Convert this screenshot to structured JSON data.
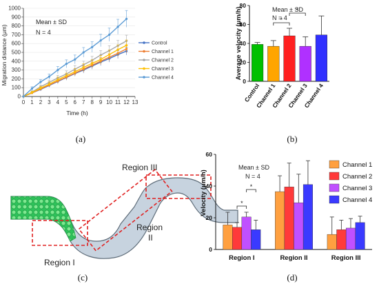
{
  "panel_labels": {
    "a": "(a)",
    "b": "(b)",
    "c": "(c)",
    "d": "(d)"
  },
  "annotations": {
    "a_mean": "Mean ± SD",
    "a_n": "N = 4",
    "b_mean": "Mean ± SD",
    "b_n": "N = 4",
    "d_mean": "Mean ± SD",
    "d_n": "N = 4",
    "star": "*"
  },
  "diagram": {
    "region1": "Region I",
    "region2": "Region",
    "region2_numeral": "II",
    "region3": "Region III"
  },
  "chart_data": [
    {
      "type": "line",
      "id": "a",
      "title": "",
      "xlabel": "Time (h)",
      "ylabel": "Migration distance (μm)",
      "xlim": [
        0,
        13
      ],
      "ylim": [
        0,
        1000
      ],
      "x_ticks": [
        0,
        1,
        2,
        3,
        4,
        5,
        6,
        7,
        8,
        9,
        10,
        11,
        12,
        13
      ],
      "y_ticks": [
        0,
        100,
        200,
        300,
        400,
        500,
        600,
        700,
        800,
        900,
        1000
      ],
      "x": [
        0,
        1,
        2,
        3,
        4,
        5,
        6,
        7,
        8,
        9,
        10,
        11,
        12
      ],
      "series": [
        {
          "name": "Control",
          "color": "#4472c4",
          "values": [
            0,
            40,
            80,
            125,
            170,
            215,
            260,
            300,
            345,
            390,
            430,
            475,
            515
          ],
          "err": [
            0,
            10,
            15,
            20,
            25,
            30,
            30,
            35,
            35,
            40,
            40,
            45,
            45
          ]
        },
        {
          "name": "Channel 1",
          "color": "#ed7d31",
          "values": [
            0,
            40,
            85,
            130,
            175,
            220,
            265,
            310,
            355,
            400,
            445,
            490,
            540
          ],
          "err": [
            0,
            10,
            15,
            20,
            25,
            30,
            30,
            35,
            35,
            40,
            40,
            45,
            45
          ]
        },
        {
          "name": "Channel 2",
          "color": "#a5a5a5",
          "values": [
            0,
            50,
            110,
            160,
            210,
            255,
            310,
            360,
            410,
            470,
            520,
            575,
            630
          ],
          "err": [
            0,
            15,
            20,
            25,
            30,
            35,
            40,
            40,
            45,
            50,
            55,
            60,
            65
          ]
        },
        {
          "name": "Channel 3",
          "color": "#ffc000",
          "values": [
            0,
            45,
            95,
            140,
            190,
            235,
            280,
            330,
            375,
            420,
            475,
            530,
            580
          ],
          "err": [
            0,
            15,
            20,
            25,
            30,
            30,
            35,
            40,
            40,
            45,
            50,
            55,
            60
          ]
        },
        {
          "name": "Channel 4",
          "color": "#5b9bd5",
          "values": [
            0,
            90,
            165,
            225,
            300,
            370,
            420,
            500,
            560,
            635,
            700,
            790,
            880
          ],
          "err": [
            0,
            20,
            25,
            30,
            40,
            45,
            50,
            55,
            60,
            70,
            75,
            85,
            95
          ]
        }
      ]
    },
    {
      "type": "bar",
      "id": "b",
      "title": "",
      "xlabel": "",
      "ylabel": "Average velocity (μm/h)",
      "ylim": [
        0,
        80
      ],
      "y_ticks": [
        0,
        20,
        40,
        60,
        80
      ],
      "categories": [
        "Control",
        "Channel 1",
        "Channel 2",
        "Channel 3",
        "Channel 4"
      ],
      "values": [
        39,
        37,
        48,
        37,
        49
      ],
      "err": [
        2,
        6,
        8,
        10,
        20
      ],
      "colors": [
        "#00c000",
        "#ffa500",
        "#ff2020",
        "#b030ff",
        "#3030ff"
      ],
      "significance": [
        {
          "from": 1,
          "to": 2,
          "label": "*"
        },
        {
          "from": 2,
          "to": 3,
          "label": "*"
        }
      ]
    },
    {
      "type": "bar",
      "id": "d",
      "title": "",
      "xlabel": "",
      "ylabel": "Velocity (μm/h)",
      "ylim": [
        0,
        60
      ],
      "y_ticks": [
        0,
        20,
        40,
        60
      ],
      "categories": [
        "Region I",
        "Region II",
        "Region III"
      ],
      "series": [
        {
          "name": "Channel 1",
          "color": "#ffa040",
          "values": [
            15.5,
            36.5,
            9.5
          ],
          "err": [
            8,
            10,
            11
          ]
        },
        {
          "name": "Channel 2",
          "color": "#ff3a3a",
          "values": [
            14,
            39.5,
            12.5
          ],
          "err": [
            3,
            15,
            6
          ]
        },
        {
          "name": "Channel 3",
          "color": "#c050ff",
          "values": [
            20.5,
            29.5,
            13.5
          ],
          "err": [
            3,
            18,
            6
          ]
        },
        {
          "name": "Channel 4",
          "color": "#3a3aff",
          "values": [
            12.5,
            41,
            17
          ],
          "err": [
            6,
            15,
            4
          ]
        }
      ],
      "significance": [
        {
          "group": 0,
          "from": 1,
          "to": 2,
          "label": "*"
        },
        {
          "group": 0,
          "from": 2,
          "to": 3,
          "label": "*"
        }
      ],
      "legend": "right"
    }
  ]
}
